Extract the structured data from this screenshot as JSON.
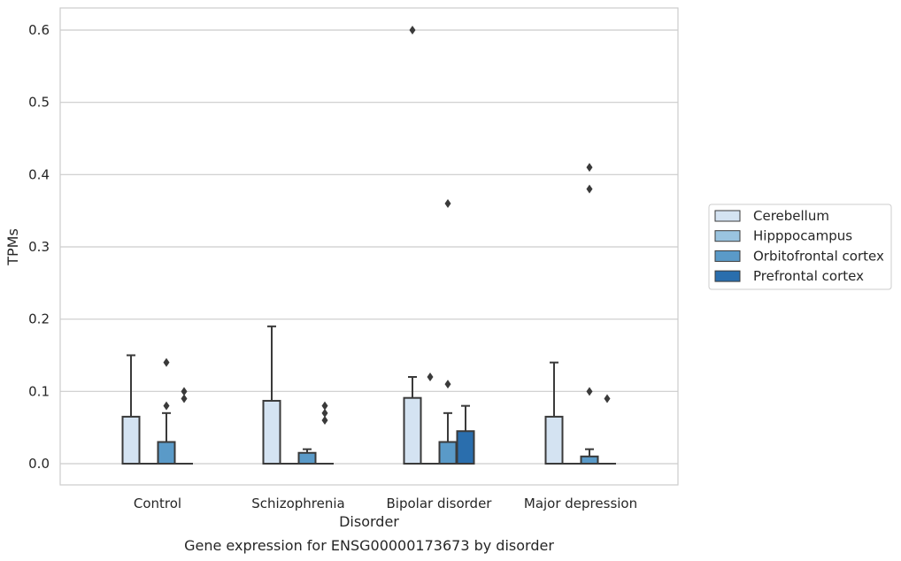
{
  "chart_data": {
    "type": "box",
    "title": "Gene expression for ENSG00000173673 by disorder",
    "xlabel": "Disorder",
    "ylabel": "TPMs",
    "ylim": [
      -0.03,
      0.63
    ],
    "yticks": [
      "0.0",
      "0.1",
      "0.2",
      "0.3",
      "0.4",
      "0.5",
      "0.6"
    ],
    "grid": "horizontal",
    "legend_position": "right",
    "categories": [
      "Control",
      "Schizophrenia",
      "Bipolar disorder",
      "Major depression"
    ],
    "series": [
      {
        "name": "Cerebellum",
        "color": "#d4e3f2",
        "boxes": [
          {
            "q1": 0.0,
            "median": 0.0,
            "q3": 0.065,
            "whisker_low": 0.0,
            "whisker_high": 0.15,
            "outliers": []
          },
          {
            "q1": 0.0,
            "median": 0.0,
            "q3": 0.087,
            "whisker_low": 0.0,
            "whisker_high": 0.19,
            "outliers": []
          },
          {
            "q1": 0.0,
            "median": 0.0,
            "q3": 0.091,
            "whisker_low": 0.0,
            "whisker_high": 0.12,
            "outliers": [
              0.6
            ]
          },
          {
            "q1": 0.0,
            "median": 0.0,
            "q3": 0.065,
            "whisker_low": 0.0,
            "whisker_high": 0.14,
            "outliers": []
          }
        ]
      },
      {
        "name": "Hipppocampus",
        "color": "#9ac4e0",
        "boxes": [
          {
            "q1": 0.0,
            "median": 0.0,
            "q3": 0.0,
            "whisker_low": 0.0,
            "whisker_high": 0.0,
            "outliers": []
          },
          {
            "q1": 0.0,
            "median": 0.0,
            "q3": 0.0,
            "whisker_low": 0.0,
            "whisker_high": 0.0,
            "outliers": []
          },
          {
            "q1": 0.0,
            "median": 0.0,
            "q3": 0.0,
            "whisker_low": 0.0,
            "whisker_high": 0.0,
            "outliers": [
              0.12
            ]
          },
          {
            "q1": 0.0,
            "median": 0.0,
            "q3": 0.0,
            "whisker_low": 0.0,
            "whisker_high": 0.0,
            "outliers": []
          }
        ]
      },
      {
        "name": "Orbitofrontal cortex",
        "color": "#5a9ac8",
        "boxes": [
          {
            "q1": 0.0,
            "median": 0.0,
            "q3": 0.03,
            "whisker_low": 0.0,
            "whisker_high": 0.07,
            "outliers": [
              0.08,
              0.14
            ]
          },
          {
            "q1": 0.0,
            "median": 0.0,
            "q3": 0.015,
            "whisker_low": 0.0,
            "whisker_high": 0.02,
            "outliers": []
          },
          {
            "q1": 0.0,
            "median": 0.0,
            "q3": 0.03,
            "whisker_low": 0.0,
            "whisker_high": 0.07,
            "outliers": [
              0.11,
              0.36
            ]
          },
          {
            "q1": 0.0,
            "median": 0.0,
            "q3": 0.01,
            "whisker_low": 0.0,
            "whisker_high": 0.02,
            "outliers": [
              0.1,
              0.38,
              0.41
            ]
          }
        ]
      },
      {
        "name": "Prefrontal cortex",
        "color": "#2a6ead",
        "boxes": [
          {
            "q1": 0.0,
            "median": 0.0,
            "q3": 0.0,
            "whisker_low": 0.0,
            "whisker_high": 0.0,
            "outliers": [
              0.09,
              0.1
            ]
          },
          {
            "q1": 0.0,
            "median": 0.0,
            "q3": 0.0,
            "whisker_low": 0.0,
            "whisker_high": 0.0,
            "outliers": [
              0.07,
              0.08,
              0.06
            ]
          },
          {
            "q1": 0.0,
            "median": 0.0,
            "q3": 0.045,
            "whisker_low": 0.0,
            "whisker_high": 0.08,
            "outliers": []
          },
          {
            "q1": 0.0,
            "median": 0.0,
            "q3": 0.0,
            "whisker_low": 0.0,
            "whisker_high": 0.0,
            "outliers": [
              0.09
            ]
          }
        ]
      }
    ]
  }
}
